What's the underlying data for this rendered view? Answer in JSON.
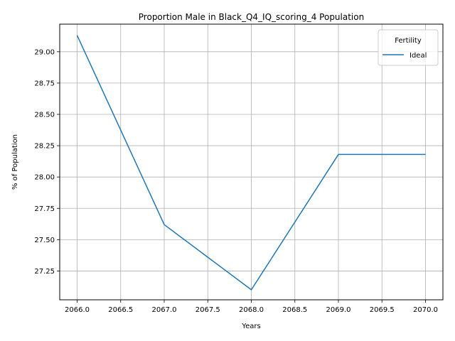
{
  "chart_data": {
    "type": "line",
    "title": "Proportion Male in Black_Q4_IQ_scoring_4 Population",
    "xlabel": "Years",
    "ylabel": "% of Population",
    "xlim": [
      2065.8,
      2070.2
    ],
    "ylim": [
      27.02,
      29.22
    ],
    "xticks": [
      2066.0,
      2066.5,
      2067.0,
      2067.5,
      2068.0,
      2068.5,
      2069.0,
      2069.5,
      2070.0
    ],
    "xtick_labels": [
      "2066.0",
      "2066.5",
      "2067.0",
      "2067.5",
      "2068.0",
      "2068.5",
      "2069.0",
      "2069.5",
      "2070.0"
    ],
    "yticks": [
      27.25,
      27.5,
      27.75,
      28.0,
      28.25,
      28.5,
      28.75,
      29.0
    ],
    "ytick_labels": [
      "27.25",
      "27.50",
      "27.75",
      "28.00",
      "28.25",
      "28.50",
      "28.75",
      "29.00"
    ],
    "grid": true,
    "legend": {
      "title": "Fertility",
      "placement": "top-right"
    },
    "series": [
      {
        "name": "Ideal",
        "color": "#1f77b4",
        "x": [
          2066,
          2067,
          2068,
          2069,
          2070
        ],
        "y": [
          29.13,
          27.62,
          27.1,
          28.18,
          28.18
        ]
      }
    ]
  }
}
